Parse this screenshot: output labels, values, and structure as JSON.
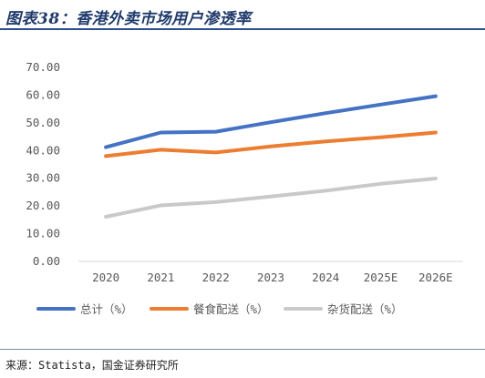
{
  "header": {
    "title": "图表38：香港外卖市场用户渗透率"
  },
  "footer": {
    "source": "来源：Statista，国金证券研究所"
  },
  "chart_data": {
    "type": "line",
    "title": "",
    "xlabel": "",
    "ylabel": "",
    "categories": [
      "2020",
      "2021",
      "2022",
      "2023",
      "2024",
      "2025E",
      "2026E"
    ],
    "ylim": [
      0,
      70
    ],
    "yticks": [
      "0.00",
      "10.00",
      "20.00",
      "30.00",
      "40.00",
      "50.00",
      "60.00",
      "70.00"
    ],
    "grid": false,
    "legend_position": "bottom",
    "series": [
      {
        "name": "总计（%）",
        "color": "#4472C4",
        "values": [
          41.2,
          46.5,
          46.8,
          50.2,
          53.5,
          56.6,
          59.6
        ]
      },
      {
        "name": "餐食配送（%）",
        "color": "#ED7D31",
        "values": [
          38.0,
          40.3,
          39.3,
          41.5,
          43.3,
          44.8,
          46.5
        ]
      },
      {
        "name": "杂货配送（%）",
        "color": "#C9C9C9",
        "values": [
          16.1,
          20.2,
          21.4,
          23.4,
          25.5,
          28.0,
          29.9
        ]
      }
    ]
  }
}
